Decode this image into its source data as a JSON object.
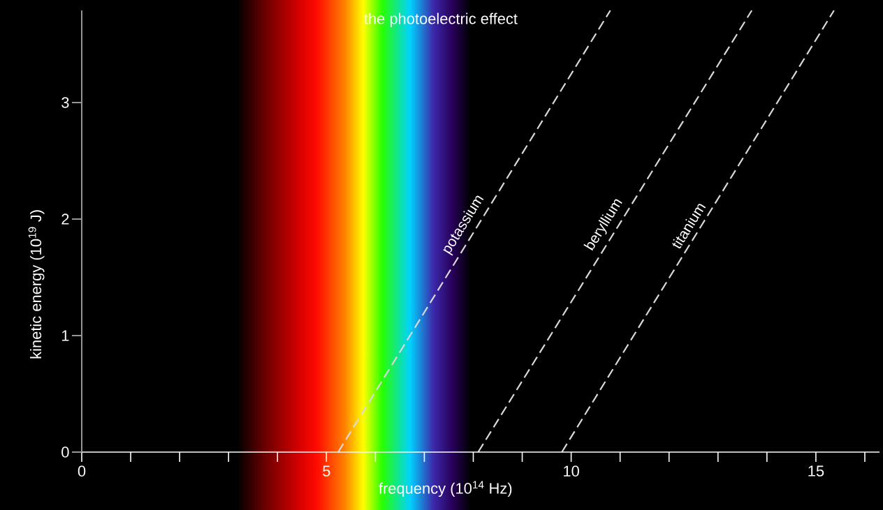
{
  "chart_data": {
    "type": "line",
    "title": "the photoelectric effect",
    "xlabel": "frequency (10$^{14}$ Hz)",
    "ylabel": "kinetic energy (10$^{19}$ J)",
    "xlim": [
      0,
      16.3
    ],
    "ylim": [
      0,
      3.79
    ],
    "xticks": [
      0,
      {
        "value": 1,
        "label": null
      },
      {
        "value": 2,
        "label": null
      },
      {
        "value": 3,
        "label": null
      },
      {
        "value": 4,
        "label": null
      },
      5,
      {
        "value": 6,
        "label": null
      },
      {
        "value": 7,
        "label": null
      },
      {
        "value": 8,
        "label": null
      },
      {
        "value": 9,
        "label": null
      },
      10,
      {
        "value": 11,
        "label": null
      },
      {
        "value": 12,
        "label": null
      },
      {
        "value": 13,
        "label": null
      },
      {
        "value": 14,
        "label": null
      },
      15,
      {
        "value": 16,
        "label": null
      }
    ],
    "yticks": [
      0,
      1,
      2,
      3
    ],
    "series": [
      {
        "name": "potassium",
        "color": "#d9d9d9",
        "x": [
          5.24,
          10.8
        ],
        "values": [
          0,
          3.79
        ]
      },
      {
        "name": "beryllium",
        "color": "#d9d9d9",
        "x": [
          8.1,
          13.69
        ],
        "values": [
          0,
          3.79
        ]
      },
      {
        "name": "titanium",
        "color": "#d9d9d9",
        "x": [
          9.81,
          15.37
        ],
        "values": [
          0,
          3.79
        ]
      }
    ],
    "bands": [
      {
        "axis": "x",
        "from": 3.18,
        "to": 7.95
      }
    ],
    "line_style": "dashed",
    "marker": "none",
    "grid": false
  }
}
